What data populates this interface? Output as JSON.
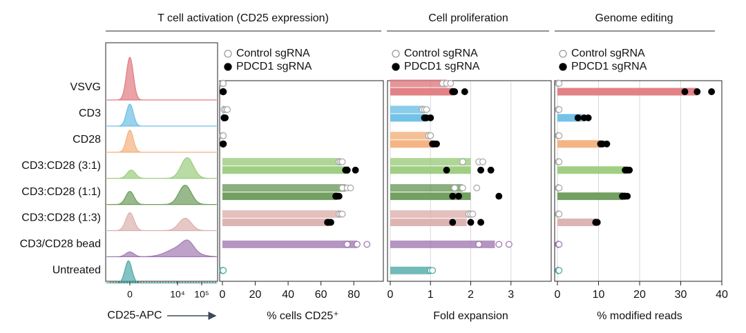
{
  "headers": [
    "T cell activation (CD25 expression)",
    "Cell proliferation",
    "Genome editing"
  ],
  "categories": [
    "VSVG",
    "CD3",
    "CD28",
    "CD3:CD28 (3:1)",
    "CD3:CD28 (1:1)",
    "CD3:CD28 (1:3)",
    "CD3/CD28 bead",
    "Untreated"
  ],
  "colors": [
    "#e07b80",
    "#6cbfe6",
    "#f4b07c",
    "#9bcc7d",
    "#6b9b5b",
    "#dcb0ae",
    "#a27bb2",
    "#4eaaa6"
  ],
  "histogram": {
    "xlabel": "CD25-APC",
    "xticks": [
      "0",
      "10⁴",
      "10⁵"
    ]
  },
  "chart_data": [
    {
      "type": "bar",
      "xlabel": "% cells CD25⁺",
      "xlim": [
        0,
        98
      ],
      "xticks": [
        0,
        20,
        40,
        60,
        80
      ],
      "grid": false,
      "series": [
        {
          "name": "Control sgRNA",
          "color": "#ffffff",
          "values": [
            0.5,
            1,
            0.5,
            72,
            75,
            72,
            82,
            0.5
          ],
          "points": [
            [
              0,
              0.5,
              0.5
            ],
            [
              1,
              2,
              3
            ],
            [
              0,
              0.5,
              0.5
            ],
            [
              71,
              72,
              73
            ],
            [
              73,
              76,
              78
            ],
            [
              71,
              72,
              73
            ],
            [
              76,
              82,
              88
            ],
            [
              0,
              0.5,
              0.5
            ]
          ]
        },
        {
          "name": "PDCD1 sgRNA",
          "color": "#000000",
          "values": [
            0.5,
            1,
            0.5,
            77,
            70,
            65,
            null,
            null
          ],
          "points": [
            [
              0.3,
              0.5,
              0.6
            ],
            [
              1,
              1.5,
              1.7
            ],
            [
              0.3,
              0.5,
              0.6
            ],
            [
              75,
              76,
              81
            ],
            [
              69,
              70,
              71
            ],
            [
              64,
              65,
              66
            ],
            null,
            null
          ]
        }
      ]
    },
    {
      "type": "bar",
      "xlabel": "Fold expansion",
      "xlim": [
        0,
        4
      ],
      "xticks": [
        0,
        1,
        2,
        3
      ],
      "grid": true,
      "series": [
        {
          "name": "Control sgRNA",
          "color": "#ffffff",
          "values": [
            1.4,
            0.85,
            1.0,
            2.0,
            1.8,
            2.0,
            2.6,
            1.0
          ],
          "points": [
            [
              1.3,
              1.4,
              1.5
            ],
            [
              0.8,
              0.85,
              0.9
            ],
            [
              0.95,
              1.0,
              1.0
            ],
            [
              1.8,
              2.2,
              2.3
            ],
            [
              1.6,
              1.8,
              2.15
            ],
            [
              1.95,
              2.0,
              2.05
            ],
            [
              2.2,
              2.7,
              2.95
            ],
            [
              1.0,
              1.0,
              1.05
            ]
          ]
        },
        {
          "name": "PDCD1 sgRNA",
          "color": "#000000",
          "values": [
            1.6,
            0.9,
            1.1,
            2.0,
            2.0,
            1.9,
            null,
            null
          ],
          "points": [
            [
              1.55,
              1.6,
              1.85
            ],
            [
              0.85,
              0.9,
              1.0
            ],
            [
              1.05,
              1.1,
              1.15
            ],
            [
              1.4,
              2.25,
              2.5
            ],
            [
              1.55,
              1.7,
              2.7
            ],
            [
              1.55,
              2.0,
              2.25
            ],
            null,
            null
          ]
        }
      ]
    },
    {
      "type": "bar",
      "xlabel": "% modified reads",
      "xlim": [
        0,
        40
      ],
      "xticks": [
        0,
        10,
        20,
        30,
        40
      ],
      "grid": true,
      "series": [
        {
          "name": "Control sgRNA",
          "color": "#ffffff",
          "values": [
            0.3,
            0.3,
            0.3,
            0.3,
            0.3,
            0.3,
            0.3,
            0.3
          ],
          "points": [
            [
              0.2,
              0.3,
              0.4
            ],
            [
              0.2,
              0.3,
              0.4
            ],
            [
              0.2,
              0.3,
              0.4
            ],
            [
              0.2,
              0.3,
              0.4
            ],
            [
              0.2,
              0.3,
              0.4
            ],
            [
              0.2,
              0.3,
              0.4
            ],
            [
              0.2,
              0.3,
              0.4
            ],
            [
              0.2,
              0.3,
              0.4
            ]
          ]
        },
        {
          "name": "PDCD1 sgRNA",
          "color": "#000000",
          "values": [
            34,
            6,
            11,
            17,
            16.5,
            9.5,
            null,
            null
          ],
          "points": [
            [
              31,
              34,
              37.5
            ],
            [
              5,
              6.5,
              7.5
            ],
            [
              10.5,
              11,
              12
            ],
            [
              16.5,
              17,
              17.5
            ],
            [
              15.8,
              16.5,
              17
            ],
            [
              9.3,
              9.5,
              9.7
            ],
            null,
            null
          ]
        }
      ]
    }
  ]
}
